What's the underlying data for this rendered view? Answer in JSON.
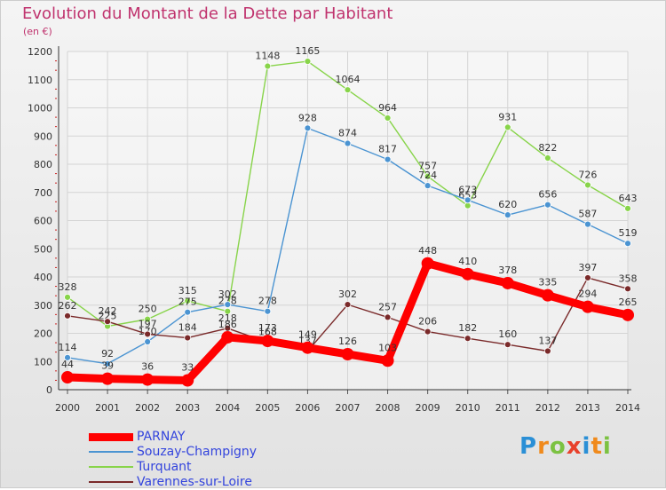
{
  "title": "Evolution du Montant de la Dette par Habitant",
  "subtitle": "(en €)",
  "logo": {
    "letters": [
      "P",
      "r",
      "o",
      "x",
      "i",
      "t",
      "i"
    ],
    "colors": [
      "#2a8fd6",
      "#f08a1c",
      "#7cc242",
      "#e8412c",
      "#2a8fd6",
      "#f08a1c",
      "#7cc242"
    ]
  },
  "chart_data": {
    "type": "line",
    "x": [
      "2000",
      "2001",
      "2002",
      "2003",
      "2004",
      "2005",
      "2006",
      "2007",
      "2008",
      "2009",
      "2010",
      "2011",
      "2012",
      "2013",
      "2014"
    ],
    "ylim": [
      0,
      1200
    ],
    "yticks": [
      "0",
      "100",
      "200",
      "300",
      "400",
      "500",
      "600",
      "700",
      "800",
      "900",
      "1000",
      "1100",
      "1200"
    ],
    "grid": true,
    "legend_position": "bottom-left",
    "series": [
      {
        "name": "Turquant",
        "color": "#88d44a",
        "values": [
          328,
          225,
          250,
          315,
          278,
          1148,
          1165,
          1064,
          964,
          757,
          653,
          931,
          822,
          726,
          643
        ],
        "labels": [
          "328",
          "225",
          "250",
          "315",
          "278",
          "1148",
          "1165",
          "1064",
          "964",
          "757",
          "653",
          "931",
          "822",
          "726",
          "643"
        ]
      },
      {
        "name": "Souzay-Champigny",
        "color": "#4b94d2",
        "values": [
          114,
          92,
          170,
          275,
          302,
          278,
          928,
          874,
          817,
          724,
          673,
          620,
          656,
          587,
          519
        ],
        "labels": [
          "114",
          "92",
          "170",
          "275",
          "302",
          "278",
          "928",
          "874",
          "817",
          "724",
          "673",
          "620",
          "656",
          "587",
          "519"
        ]
      },
      {
        "name": "Varennes-sur-Loire",
        "color": "#7a2a2a",
        "values": [
          262,
          242,
          197,
          184,
          218,
          168,
          137,
          302,
          257,
          206,
          182,
          160,
          137,
          397,
          358
        ],
        "labels": [
          "262",
          "242",
          "197",
          "184",
          "218",
          "168",
          "137",
          "302",
          "257",
          "206",
          "182",
          "160",
          "137",
          "397",
          "358"
        ]
      },
      {
        "name": "PARNAY",
        "color": "#ff0000",
        "values": [
          44,
          39,
          36,
          33,
          186,
          173,
          149,
          126,
          103,
          448,
          410,
          378,
          335,
          294,
          265
        ],
        "labels": [
          "44",
          "39",
          "36",
          "33",
          "186",
          "173",
          "149",
          "126",
          "103",
          "448",
          "410",
          "378",
          "335",
          "294",
          "265"
        ]
      }
    ]
  },
  "legend": [
    {
      "name": "PARNAY",
      "color": "#ff0000",
      "width": 9
    },
    {
      "name": "Souzay-Champigny",
      "color": "#4b94d2",
      "width": 2
    },
    {
      "name": "Turquant",
      "color": "#88d44a",
      "width": 2
    },
    {
      "name": "Varennes-sur-Loire",
      "color": "#7a2a2a",
      "width": 2
    }
  ]
}
